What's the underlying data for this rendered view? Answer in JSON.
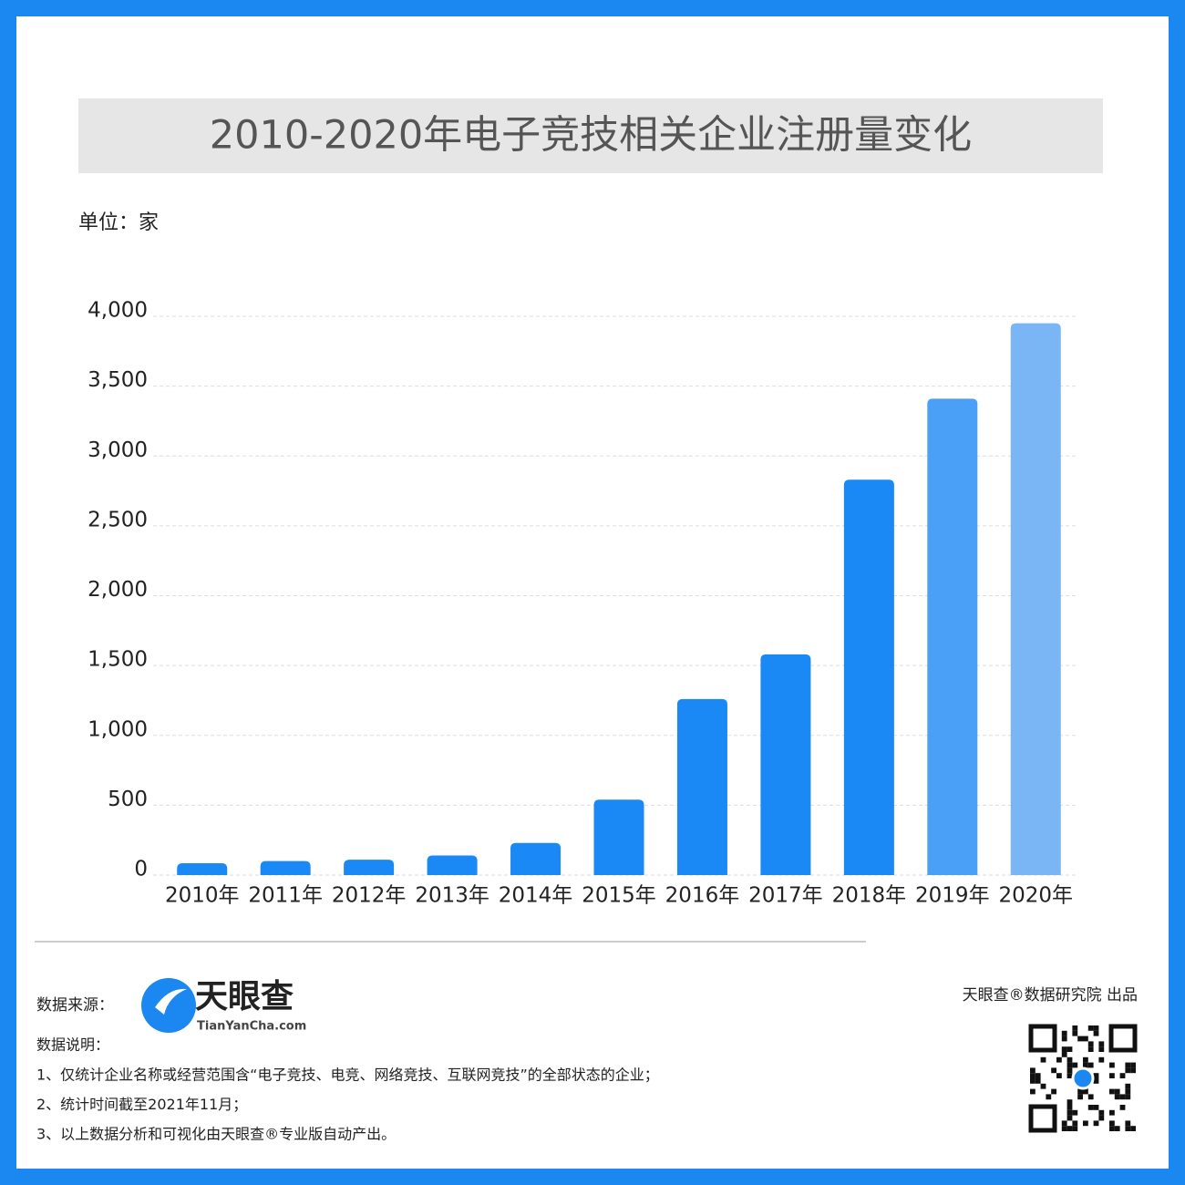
{
  "chart_data": {
    "type": "bar",
    "title": "2010-2020年电子竞技相关企业注册量变化",
    "unit_label": "单位：家",
    "categories": [
      "2010年",
      "2011年",
      "2012年",
      "2013年",
      "2014年",
      "2015年",
      "2016年",
      "2017年",
      "2018年",
      "2019年",
      "2020年"
    ],
    "values": [
      85,
      100,
      110,
      140,
      230,
      540,
      1260,
      1580,
      2830,
      3410,
      3950
    ],
    "colors": [
      "#1a88f5",
      "#1a88f5",
      "#1a88f5",
      "#1a88f5",
      "#1a88f5",
      "#1a88f5",
      "#1a88f5",
      "#1a88f5",
      "#1a88f5",
      "#4aa0f6",
      "#7ab6f6"
    ],
    "ylim": [
      0,
      4000
    ],
    "yticks": [
      0,
      500,
      {
        "value": 1000,
        "label": "1,000"
      },
      {
        "value": 1500,
        "label": "1,500"
      },
      {
        "value": 2000,
        "label": "2,000"
      },
      {
        "value": 2500,
        "label": "2,500"
      },
      {
        "value": 3000,
        "label": "3,000"
      },
      {
        "value": 3500,
        "label": "3,500"
      },
      {
        "value": 4000,
        "label": "4,000"
      }
    ],
    "grid": true
  },
  "footer": {
    "source_label": "数据来源：",
    "logo_name": "天眼查",
    "logo_url": "TianYanCha.com",
    "publisher": "天眼查®数据研究院 出品",
    "notes_title": "数据说明：",
    "notes": [
      "1、仅统计企业名称或经营范围含“电子竞技、电竞、网络竞技、互联网竞技”的全部状态的企业；",
      "2、统计时间截至2021年11月；",
      "3、以上数据分析和可视化由天眼查®专业版自动产出。"
    ]
  }
}
